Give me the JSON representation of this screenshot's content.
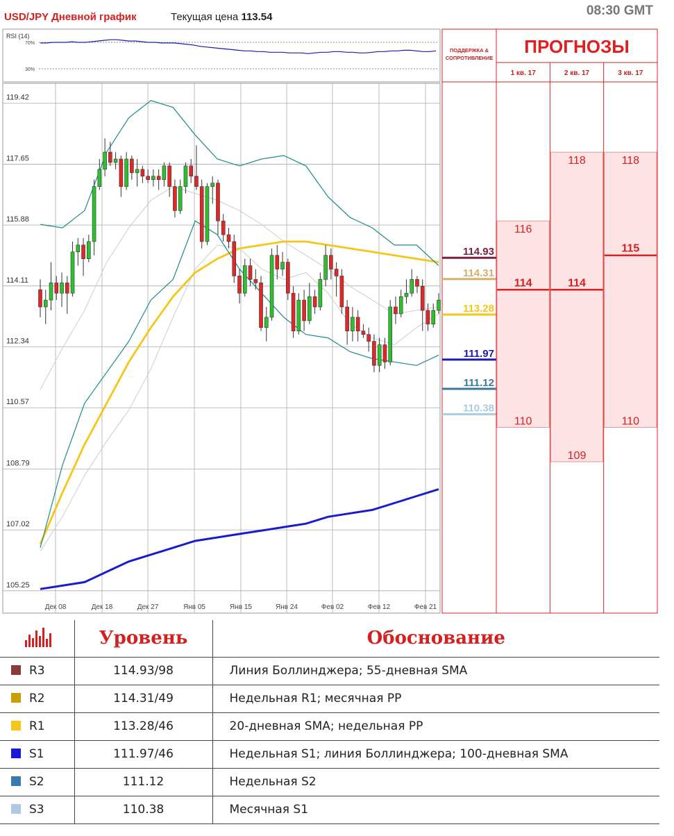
{
  "header": {
    "title": "USD/JPY Дневной график",
    "price_label": "Текущая цена",
    "price_value": "113.54",
    "time": "08:30 GMT"
  },
  "rsi": {
    "label": "RSI (14)",
    "levels": [
      "70%",
      "30%"
    ],
    "values": [
      69,
      69,
      70,
      70,
      70,
      71,
      70,
      70,
      71,
      72,
      73,
      74,
      74,
      73,
      72,
      72,
      71,
      70,
      70,
      69,
      69,
      69,
      68,
      67,
      66,
      64,
      63,
      62,
      61,
      60,
      59,
      58,
      57,
      57,
      56,
      56,
      55,
      55,
      55,
      54,
      54,
      54,
      53,
      54,
      55,
      55,
      56,
      56,
      55,
      55,
      54,
      54,
      55,
      56,
      56,
      57,
      57,
      58,
      58,
      57,
      56,
      56,
      57
    ]
  },
  "chart_data": {
    "type": "candlestick",
    "title": "USD/JPY Дневной график",
    "ylim": [
      104.6,
      120.0
    ],
    "y_ticks": [
      "119.42",
      "117.65",
      "115.88",
      "114.11",
      "112.34",
      "110.57",
      "108.79",
      "107.02",
      "105.25"
    ],
    "x_ticks": [
      "Дек 08",
      "Дек 18",
      "Дек 27",
      "Янв 05",
      "Янв 15",
      "Янв 24",
      "Фев 02",
      "Фев 12",
      "Фев 21"
    ],
    "candles": [
      [
        114.0,
        113.5,
        114.3,
        113.2
      ],
      [
        113.5,
        113.7,
        114.0,
        113.0
      ],
      [
        113.7,
        114.2,
        114.8,
        113.4
      ],
      [
        114.2,
        113.9,
        114.4,
        113.7
      ],
      [
        113.9,
        114.2,
        114.5,
        113.5
      ],
      [
        114.2,
        113.9,
        114.4,
        113.3
      ],
      [
        113.9,
        115.1,
        115.4,
        113.8
      ],
      [
        115.1,
        115.3,
        115.5,
        114.7
      ],
      [
        115.3,
        114.9,
        115.5,
        114.4
      ],
      [
        114.9,
        115.4,
        115.6,
        114.8
      ],
      [
        115.4,
        117.0,
        117.2,
        115.0
      ],
      [
        117.0,
        117.5,
        117.8,
        116.9
      ],
      [
        117.5,
        118.0,
        118.4,
        117.3
      ],
      [
        118.0,
        117.7,
        118.3,
        117.6
      ],
      [
        117.7,
        117.8,
        118.0,
        117.5
      ],
      [
        117.8,
        117.0,
        117.9,
        116.7
      ],
      [
        117.0,
        117.8,
        118.0,
        116.9
      ],
      [
        117.8,
        117.4,
        117.9,
        117.2
      ],
      [
        117.4,
        117.5,
        117.8,
        117.0
      ],
      [
        117.5,
        117.3,
        117.6,
        117.1
      ],
      [
        117.3,
        117.2,
        117.5,
        117.1
      ],
      [
        117.2,
        117.3,
        117.5,
        117.0
      ],
      [
        117.3,
        117.2,
        117.5,
        116.9
      ],
      [
        117.2,
        117.6,
        117.7,
        117.0
      ],
      [
        117.6,
        117.0,
        117.7,
        116.7
      ],
      [
        117.0,
        116.3,
        117.2,
        116.1
      ],
      [
        116.3,
        117.0,
        117.2,
        116.2
      ],
      [
        117.0,
        117.6,
        117.7,
        116.8
      ],
      [
        117.6,
        117.3,
        117.8,
        117.1
      ],
      [
        117.3,
        117.0,
        118.2,
        116.9
      ],
      [
        117.0,
        115.4,
        117.2,
        115.2
      ],
      [
        115.4,
        117.0,
        117.1,
        115.3
      ],
      [
        117.0,
        117.1,
        117.3,
        116.5
      ],
      [
        117.1,
        116.0,
        117.2,
        115.6
      ],
      [
        116.0,
        115.6,
        116.2,
        115.4
      ],
      [
        115.6,
        115.4,
        115.8,
        115.2
      ],
      [
        115.4,
        114.4,
        115.6,
        114.2
      ],
      [
        114.4,
        113.9,
        114.6,
        113.6
      ],
      [
        113.9,
        114.7,
        114.9,
        113.8
      ],
      [
        114.7,
        114.3,
        114.9,
        114.1
      ],
      [
        114.3,
        114.2,
        114.6,
        114.0
      ],
      [
        114.2,
        112.9,
        114.4,
        112.8
      ],
      [
        112.9,
        113.2,
        113.5,
        112.5
      ],
      [
        113.2,
        115.0,
        115.2,
        113.1
      ],
      [
        115.0,
        114.6,
        115.3,
        114.3
      ],
      [
        114.6,
        114.8,
        115.1,
        114.4
      ],
      [
        114.8,
        113.9,
        114.9,
        113.7
      ],
      [
        113.9,
        112.8,
        114.1,
        112.6
      ],
      [
        112.8,
        113.7,
        113.9,
        112.7
      ],
      [
        113.7,
        113.1,
        114.0,
        112.8
      ],
      [
        113.1,
        113.8,
        114.2,
        113.0
      ],
      [
        113.8,
        113.5,
        114.0,
        113.3
      ],
      [
        113.5,
        114.3,
        114.5,
        113.4
      ],
      [
        114.3,
        115.0,
        115.3,
        114.1
      ],
      [
        115.0,
        114.6,
        115.2,
        114.3
      ],
      [
        114.6,
        114.4,
        114.8,
        113.8
      ],
      [
        114.4,
        113.5,
        114.6,
        113.3
      ],
      [
        113.5,
        112.8,
        113.7,
        112.4
      ],
      [
        112.8,
        113.2,
        113.5,
        112.5
      ],
      [
        113.2,
        112.8,
        113.4,
        112.5
      ],
      [
        112.8,
        112.7,
        113.0,
        112.6
      ],
      [
        112.7,
        112.5,
        112.9,
        112.2
      ],
      [
        112.5,
        111.8,
        112.7,
        111.6
      ],
      [
        111.8,
        112.4,
        112.6,
        111.6
      ],
      [
        112.4,
        111.9,
        112.6,
        111.7
      ],
      [
        111.9,
        113.5,
        113.7,
        111.8
      ],
      [
        113.5,
        113.3,
        113.8,
        113.0
      ],
      [
        113.3,
        113.8,
        114.0,
        113.2
      ],
      [
        113.8,
        113.9,
        114.3,
        113.6
      ],
      [
        113.9,
        114.3,
        114.6,
        113.8
      ],
      [
        114.3,
        114.1,
        114.4,
        113.9
      ],
      [
        114.1,
        113.4,
        114.3,
        112.8
      ],
      [
        113.4,
        113.0,
        113.6,
        112.8
      ],
      [
        113.0,
        113.4,
        113.6,
        112.9
      ],
      [
        113.4,
        113.7,
        113.9,
        113.3
      ]
    ],
    "series": [
      {
        "values": [
          106.4,
          107.4,
          108.6,
          109.6,
          110.5,
          111.7,
          113.2,
          114.6,
          115.3,
          115.2,
          114.6,
          114.3,
          114.5,
          113.9,
          113.0,
          112.6,
          112.4,
          112.9,
          113.3
        ]
      },
      {
        "values": [
          111.1,
          112.3,
          113.4,
          114.8,
          115.8,
          116.6,
          117.0,
          116.8,
          116.6,
          116.3,
          115.9,
          115.4,
          115.0,
          114.6,
          114.1,
          113.7,
          113.3,
          113.4,
          113.5
        ]
      },
      {
        "values": [
          106.6,
          108.1,
          109.5,
          110.7,
          111.9,
          112.9,
          113.8,
          114.5,
          114.9,
          115.2,
          115.3,
          115.4,
          115.4,
          115.3,
          115.2,
          115.1,
          115.0,
          114.9,
          114.8
        ]
      },
      {
        "values": [
          105.3,
          105.4,
          105.5,
          105.8,
          106.1,
          106.3,
          106.5,
          106.7,
          106.8,
          106.9,
          107.0,
          107.1,
          107.2,
          107.4,
          107.5,
          107.6,
          107.8,
          108.0,
          108.2
        ]
      },
      {
        "values": [
          115.9,
          115.8,
          116.3,
          118.0,
          119.0,
          119.5,
          119.3,
          118.5,
          117.8,
          117.6,
          117.8,
          117.9,
          117.6,
          116.7,
          116.1,
          115.8,
          115.3,
          115.3,
          114.7
        ]
      },
      {
        "values": [
          106.5,
          108.9,
          110.7,
          111.6,
          112.5,
          113.7,
          114.3,
          116.0,
          115.6,
          114.6,
          113.9,
          113.2,
          112.7,
          112.6,
          112.2,
          112.0,
          111.9,
          111.8,
          112.1
        ]
      }
    ],
    "levels": [
      {
        "value": 114.93,
        "label": "114.93",
        "color": "#7a2040"
      },
      {
        "value": 114.31,
        "label": "114.31",
        "color": "#d4b070"
      },
      {
        "value": 113.28,
        "label": "113.28",
        "color": "#f5c518"
      },
      {
        "value": 111.97,
        "label": "111.97",
        "color": "#1a1ab0"
      },
      {
        "value": 111.12,
        "label": "111.12",
        "color": "#3a78a0"
      },
      {
        "value": 110.38,
        "label": "110.38",
        "color": "#a8cce0"
      }
    ]
  },
  "forecasts": {
    "title": "ПРОГНОЗЫ",
    "sr_label": [
      "ПОДДЕРЖКА &",
      "СОПРОТИВЛЕНИЕ"
    ],
    "quarters": [
      {
        "name": "1 кв. 17",
        "high": "116",
        "mid": "114",
        "low": "110",
        "high_v": 116.0,
        "mid_v": 114.0,
        "low_v": 110.0
      },
      {
        "name": "2 кв. 17",
        "high": "118",
        "mid": "114",
        "low": "109",
        "high_v": 118.0,
        "mid_v": 114.0,
        "low_v": 109.0
      },
      {
        "name": "3 кв. 17",
        "high": "118",
        "mid": "115",
        "low": "110",
        "high_v": 118.0,
        "mid_v": 115.0,
        "low_v": 110.0
      }
    ]
  },
  "table": {
    "col_level": "Уровень",
    "col_reason": "Обоснование",
    "rows": [
      {
        "name": "R3",
        "color": "#8b3a3a",
        "level": "114.93/98",
        "reason": "Линия Боллинджера; 55-дневная SMA"
      },
      {
        "name": "R2",
        "color": "#c8a000",
        "level": "114.31/49",
        "reason": "Недельная R1; месячная PP"
      },
      {
        "name": "R1",
        "color": "#f5c518",
        "level": "113.28/46",
        "reason": "20-дневная SMA; недельная PP"
      },
      {
        "name": "S1",
        "color": "#1a1ad0",
        "level": "111.97/46",
        "reason": "Недельная S1; линия Боллинджера; 100-дневная SMA"
      },
      {
        "name": "S2",
        "color": "#3a78b0",
        "level": "111.12",
        "reason": "Недельная S2"
      },
      {
        "name": "S3",
        "color": "#b0c8e0",
        "level": "110.38",
        "reason": "Месячная S1"
      }
    ]
  }
}
